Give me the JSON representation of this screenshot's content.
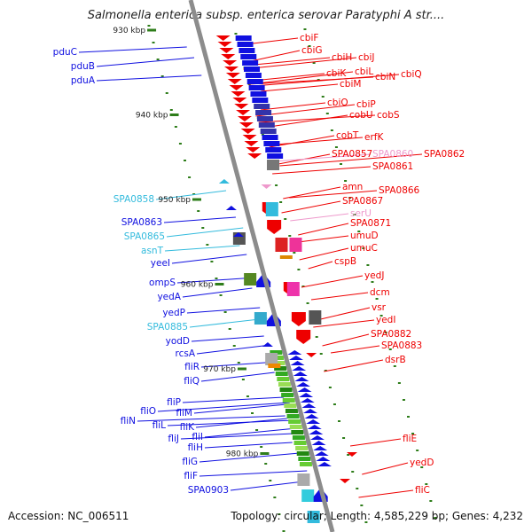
{
  "title": "Salmonella enterica subsp. enterica serovar Paratyphi A str....",
  "footer": {
    "accession": "Accession: NC_006511",
    "summary": "Topology: circular; Length: 4,585,229 bp; Genes: 4,232"
  },
  "colors": {
    "axis": "#8c8c8c",
    "tick": "#2e7d1a",
    "forward": "#1010e0",
    "reverse": "#ee0000",
    "rna": "#33bbdd",
    "pseudo": "#ee99cc",
    "kbp_label": "#222222"
  },
  "scale": [
    {
      "label": "930 kbp",
      "kbp": 930
    },
    {
      "label": "940 kbp",
      "kbp": 940
    },
    {
      "label": "950 kbp",
      "kbp": 950
    },
    {
      "label": "960 kbp",
      "kbp": 960
    },
    {
      "label": "970 kbp",
      "kbp": 970
    },
    {
      "label": "980 kbp",
      "kbp": 980
    }
  ],
  "genes_left": [
    {
      "name": "pduC",
      "kind": "forward"
    },
    {
      "name": "pduB",
      "kind": "forward"
    },
    {
      "name": "pduA",
      "kind": "forward"
    },
    {
      "name": "SPA0858",
      "kind": "rna"
    },
    {
      "name": "SPA0863",
      "kind": "forward"
    },
    {
      "name": "SPA0865",
      "kind": "rna"
    },
    {
      "name": "asnT",
      "kind": "rna"
    },
    {
      "name": "yeeI",
      "kind": "forward"
    },
    {
      "name": "ompS",
      "kind": "forward"
    },
    {
      "name": "yedA",
      "kind": "forward"
    },
    {
      "name": "yedP",
      "kind": "forward"
    },
    {
      "name": "SPA0885",
      "kind": "rna"
    },
    {
      "name": "yodD",
      "kind": "forward"
    },
    {
      "name": "rcsA",
      "kind": "forward"
    },
    {
      "name": "fliR",
      "kind": "forward"
    },
    {
      "name": "fliQ",
      "kind": "forward"
    },
    {
      "name": "fliP",
      "kind": "forward"
    },
    {
      "name": "fliO",
      "kind": "forward"
    },
    {
      "name": "fliN",
      "kind": "forward"
    },
    {
      "name": "fliM",
      "kind": "forward"
    },
    {
      "name": "fliL",
      "kind": "forward"
    },
    {
      "name": "fliK",
      "kind": "forward"
    },
    {
      "name": "fliJ",
      "kind": "forward"
    },
    {
      "name": "fliI",
      "kind": "forward"
    },
    {
      "name": "fliH",
      "kind": "forward"
    },
    {
      "name": "fliG",
      "kind": "forward"
    },
    {
      "name": "fliF",
      "kind": "forward"
    },
    {
      "name": "SPA0903",
      "kind": "forward"
    }
  ],
  "genes_right": [
    {
      "name": "cbiF",
      "kind": "reverse"
    },
    {
      "name": "cbiG",
      "kind": "reverse"
    },
    {
      "name": "cbiH",
      "kind": "reverse"
    },
    {
      "name": "cbiJ",
      "kind": "reverse"
    },
    {
      "name": "cbiK",
      "kind": "reverse"
    },
    {
      "name": "cbiL",
      "kind": "reverse"
    },
    {
      "name": "cbiN",
      "kind": "reverse"
    },
    {
      "name": "cbiQ",
      "kind": "reverse"
    },
    {
      "name": "cbiM",
      "kind": "reverse"
    },
    {
      "name": "cbiP",
      "kind": "reverse"
    },
    {
      "name": "cbiO",
      "kind": "reverse"
    },
    {
      "name": "cobU",
      "kind": "reverse"
    },
    {
      "name": "cobS",
      "kind": "reverse"
    },
    {
      "name": "cobT",
      "kind": "reverse"
    },
    {
      "name": "erfK",
      "kind": "reverse"
    },
    {
      "name": "SPA0857",
      "kind": "reverse"
    },
    {
      "name": "SPA0860",
      "kind": "pseudo"
    },
    {
      "name": "SPA0862",
      "kind": "reverse"
    },
    {
      "name": "SPA0861",
      "kind": "reverse"
    },
    {
      "name": "amn",
      "kind": "reverse"
    },
    {
      "name": "SPA0866",
      "kind": "reverse"
    },
    {
      "name": "SPA0867",
      "kind": "reverse"
    },
    {
      "name": "serU",
      "kind": "pseudo"
    },
    {
      "name": "SPA0871",
      "kind": "reverse"
    },
    {
      "name": "umuD",
      "kind": "reverse"
    },
    {
      "name": "umuC",
      "kind": "reverse"
    },
    {
      "name": "cspB",
      "kind": "reverse"
    },
    {
      "name": "yedJ",
      "kind": "reverse"
    },
    {
      "name": "dcm",
      "kind": "reverse"
    },
    {
      "name": "vsr",
      "kind": "reverse"
    },
    {
      "name": "yedI",
      "kind": "reverse"
    },
    {
      "name": "SPA0882",
      "kind": "reverse"
    },
    {
      "name": "SPA0883",
      "kind": "reverse"
    },
    {
      "name": "dsrB",
      "kind": "reverse"
    },
    {
      "name": "fliE",
      "kind": "reverse"
    },
    {
      "name": "yedD",
      "kind": "reverse"
    },
    {
      "name": "fliC",
      "kind": "reverse"
    }
  ]
}
